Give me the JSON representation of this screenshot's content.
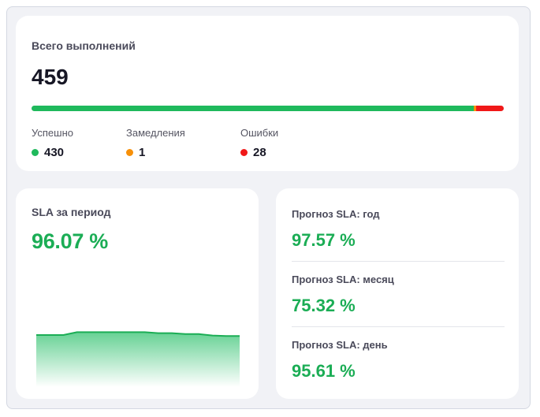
{
  "total": {
    "title": "Всего выполнений",
    "count": "459",
    "breakdown": [
      {
        "label": "Успешно",
        "value": "430",
        "color": "#1fb95c",
        "share": 0.937
      },
      {
        "label": "Замедления",
        "value": "1",
        "color": "#f79009",
        "share": 0.004
      },
      {
        "label": "Ошибки",
        "value": "28",
        "color": "#f01818",
        "share": 0.059
      }
    ]
  },
  "sla": {
    "title": "SLA за период",
    "value": "96.07 %",
    "trend": [
      97.0,
      97.0,
      97.0,
      97.6,
      97.6,
      97.6,
      97.6,
      97.6,
      97.6,
      97.4,
      97.4,
      97.2,
      97.2,
      96.9,
      96.8,
      96.8
    ]
  },
  "forecast": {
    "items": [
      {
        "label": "Прогноз SLA: год",
        "value": "97.57 %"
      },
      {
        "label": "Прогноз SLA: месяц",
        "value": "75.32 %"
      },
      {
        "label": "Прогноз SLA: день",
        "value": "95.61 %"
      }
    ]
  }
}
